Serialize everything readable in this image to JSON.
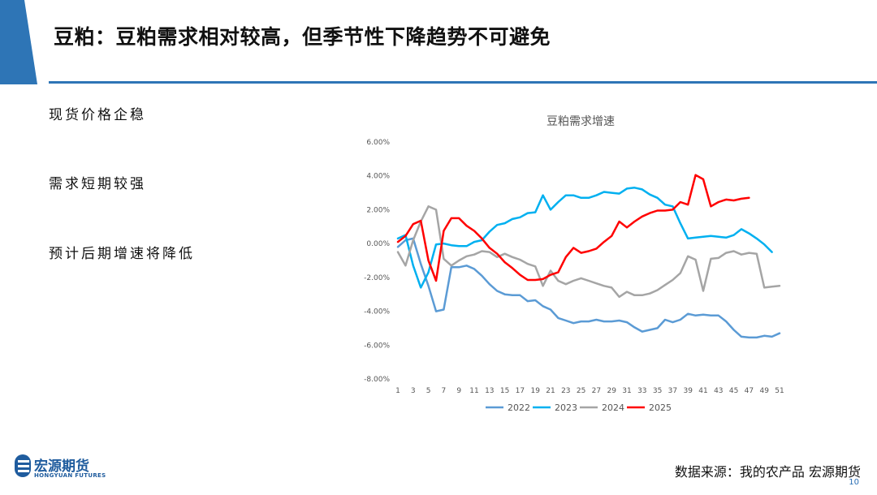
{
  "header": {
    "title": "豆粕：豆粕需求相对较高，但季节性下降趋势不可避免",
    "accent_color": "#2e75b6"
  },
  "bullets": [
    "现货价格企稳",
    "需求短期较强",
    "预计后期增速将降低"
  ],
  "footer": {
    "source": "数据来源：我的农产品 宏源期货",
    "page_number": "10",
    "logo_cn": "宏源期货",
    "logo_en": "HONGYUAN FUTURES"
  },
  "chart_data": {
    "type": "line",
    "title": "豆粕需求增速",
    "xlabel": "",
    "ylabel": "",
    "x_ticks": [
      1,
      3,
      5,
      7,
      9,
      11,
      13,
      15,
      17,
      19,
      21,
      23,
      25,
      27,
      29,
      31,
      33,
      35,
      37,
      39,
      41,
      43,
      45,
      47,
      49,
      51
    ],
    "y_ticks": [
      "6.00%",
      "4.00%",
      "2.00%",
      "0.00%",
      "-2.00%",
      "-4.00%",
      "-6.00%",
      "-8.00%"
    ],
    "ylim": [
      -8,
      6
    ],
    "xlim": [
      1,
      51
    ],
    "grid": false,
    "legend_position": "bottom",
    "series": [
      {
        "name": "2022",
        "color": "#5b9bd5",
        "x": [
          1,
          2,
          3,
          4,
          5,
          6,
          7,
          8,
          9,
          10,
          11,
          12,
          13,
          14,
          15,
          16,
          17,
          18,
          19,
          20,
          21,
          22,
          23,
          24,
          25,
          26,
          27,
          28,
          29,
          30,
          31,
          32,
          33,
          34,
          35,
          36,
          37,
          38,
          39,
          40,
          41,
          42,
          43,
          44,
          45,
          46,
          47,
          48,
          49,
          50,
          51
        ],
        "values": [
          -0.2,
          0.2,
          0.3,
          -1.2,
          -2.5,
          -4.0,
          -3.9,
          -1.4,
          -1.4,
          -1.3,
          -1.5,
          -1.9,
          -2.4,
          -2.8,
          -3.0,
          -3.05,
          -3.05,
          -3.4,
          -3.35,
          -3.7,
          -3.9,
          -4.4,
          -4.55,
          -4.7,
          -4.6,
          -4.6,
          -4.5,
          -4.6,
          -4.6,
          -4.55,
          -4.65,
          -4.95,
          -5.2,
          -5.1,
          -5.0,
          -4.5,
          -4.65,
          -4.5,
          -4.15,
          -4.25,
          -4.2,
          -4.25,
          -4.25,
          -4.6,
          -5.1,
          -5.5,
          -5.55,
          -5.55,
          -5.45,
          -5.5,
          -5.3
        ]
      },
      {
        "name": "2023",
        "color": "#00b0f0",
        "x": [
          1,
          2,
          3,
          4,
          5,
          6,
          7,
          8,
          9,
          10,
          11,
          12,
          13,
          14,
          15,
          16,
          17,
          18,
          19,
          20,
          21,
          22,
          23,
          24,
          25,
          26,
          27,
          28,
          29,
          30,
          31,
          32,
          33,
          34,
          35,
          36,
          37,
          38,
          39,
          40,
          41,
          42,
          43,
          44,
          45,
          46,
          47,
          48,
          49,
          50
        ],
        "values": [
          0.3,
          0.5,
          -1.3,
          -2.6,
          -1.7,
          -0.05,
          0.0,
          -0.1,
          -0.15,
          -0.15,
          0.1,
          0.2,
          0.7,
          1.1,
          1.2,
          1.45,
          1.55,
          1.8,
          1.85,
          2.85,
          2.0,
          2.45,
          2.85,
          2.85,
          2.7,
          2.7,
          2.85,
          3.05,
          3.0,
          2.95,
          3.25,
          3.3,
          3.2,
          2.9,
          2.7,
          2.3,
          2.2,
          1.2,
          0.3,
          0.35,
          0.4,
          0.45,
          0.4,
          0.35,
          0.5,
          0.85,
          0.6,
          0.3,
          -0.05,
          -0.5
        ]
      },
      {
        "name": "2024",
        "color": "#a5a5a5",
        "x": [
          1,
          2,
          3,
          4,
          5,
          6,
          7,
          8,
          9,
          10,
          11,
          12,
          13,
          14,
          15,
          16,
          17,
          18,
          19,
          20,
          21,
          22,
          23,
          24,
          25,
          26,
          27,
          28,
          29,
          30,
          31,
          32,
          33,
          34,
          35,
          36,
          37,
          38,
          39,
          40,
          41,
          42,
          43,
          44,
          45,
          46,
          47,
          48,
          49,
          50,
          51
        ],
        "values": [
          -0.5,
          -1.3,
          0.2,
          1.3,
          2.2,
          2.0,
          -0.9,
          -1.3,
          -1.0,
          -0.75,
          -0.65,
          -0.45,
          -0.5,
          -0.8,
          -0.6,
          -0.8,
          -0.95,
          -1.2,
          -1.35,
          -2.5,
          -1.6,
          -2.2,
          -2.4,
          -2.2,
          -2.05,
          -2.2,
          -2.35,
          -2.5,
          -2.6,
          -3.15,
          -2.85,
          -3.05,
          -3.05,
          -2.95,
          -2.75,
          -2.45,
          -2.15,
          -1.75,
          -0.75,
          -0.95,
          -2.8,
          -0.9,
          -0.85,
          -0.55,
          -0.45,
          -0.65,
          -0.55,
          -0.6,
          -2.6,
          -2.55,
          -2.5
        ]
      },
      {
        "name": "2025",
        "color": "#ff0000",
        "x": [
          1,
          2,
          3,
          4,
          5,
          6,
          7,
          8,
          9,
          10,
          11,
          12,
          13,
          14,
          15,
          16,
          17,
          18,
          19,
          20,
          21,
          22,
          23,
          24,
          25,
          26,
          27,
          28,
          29,
          30,
          31,
          32,
          33,
          34,
          35,
          36,
          37,
          38,
          39,
          40,
          41,
          42,
          43,
          44,
          45,
          46,
          47
        ],
        "values": [
          0.1,
          0.45,
          1.15,
          1.35,
          -1.0,
          -2.2,
          0.75,
          1.5,
          1.5,
          1.05,
          0.75,
          0.3,
          -0.25,
          -0.6,
          -1.1,
          -1.45,
          -1.85,
          -2.15,
          -2.15,
          -2.1,
          -1.85,
          -1.7,
          -0.8,
          -0.25,
          -0.55,
          -0.45,
          -0.3,
          0.1,
          0.45,
          1.3,
          0.95,
          1.3,
          1.6,
          1.8,
          1.95,
          1.95,
          2.0,
          2.45,
          2.3,
          4.05,
          3.8,
          2.2,
          2.45,
          2.6,
          2.55,
          2.65,
          2.7
        ]
      }
    ]
  }
}
